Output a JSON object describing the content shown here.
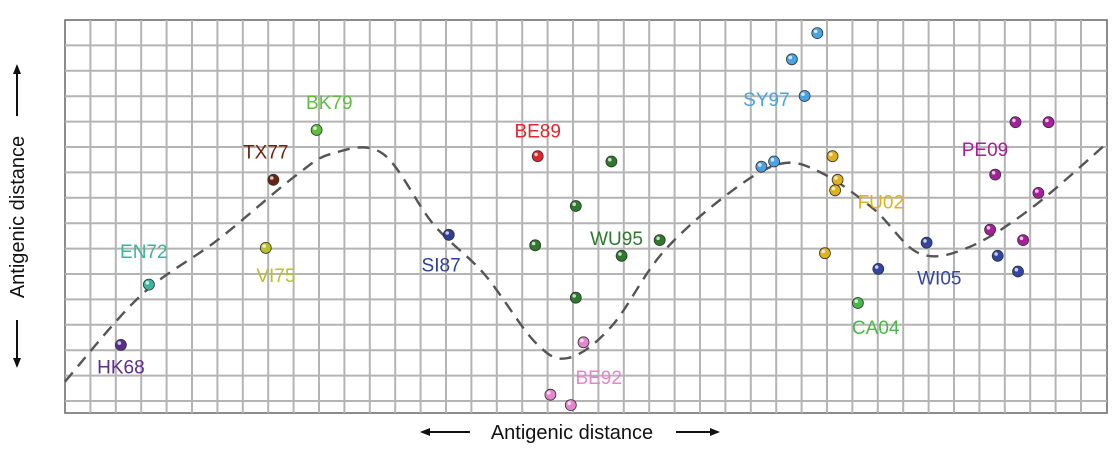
{
  "chart_data": {
    "type": "scatter",
    "xlabel": "Antigenic distance",
    "ylabel": "Antigenic distance",
    "xlim": [
      0,
      41
    ],
    "ylim": [
      0,
      15
    ],
    "grid": true,
    "clusters": [
      {
        "name": "HK68",
        "color": "#5b2d8e",
        "label_at": [
          2.2,
          1.7
        ],
        "points": [
          [
            2.2,
            2.6
          ]
        ]
      },
      {
        "name": "EN72",
        "color": "#3bb59b",
        "label_at": [
          3.1,
          6.1
        ],
        "points": [
          [
            3.3,
            4.9
          ]
        ]
      },
      {
        "name": "VI75",
        "color": "#b8c128",
        "label_at": [
          8.3,
          5.2
        ],
        "points": [
          [
            7.9,
            6.3
          ]
        ]
      },
      {
        "name": "TX77",
        "color": "#6b2410",
        "label_at": [
          7.9,
          9.9
        ],
        "points": [
          [
            8.2,
            8.9
          ]
        ]
      },
      {
        "name": "BK79",
        "color": "#5cbf3c",
        "label_at": [
          10.4,
          11.8
        ],
        "points": [
          [
            9.9,
            10.8
          ]
        ]
      },
      {
        "name": "SI87",
        "color": "#2d3f9a",
        "label_at": [
          14.8,
          5.6
        ],
        "points": [
          [
            15.1,
            6.8
          ]
        ]
      },
      {
        "name": "BE89",
        "color": "#e0262b",
        "label_at": [
          18.6,
          10.7
        ],
        "points": [
          [
            18.6,
            9.8
          ]
        ]
      },
      {
        "name": "WU95",
        "color": "#2d7a2d",
        "label_at": [
          21.7,
          6.6
        ],
        "points": [
          [
            21.5,
            9.6
          ],
          [
            20.1,
            7.9
          ],
          [
            18.5,
            6.4
          ],
          [
            20.1,
            4.4
          ],
          [
            21.9,
            6.0
          ],
          [
            23.4,
            6.6
          ]
        ]
      },
      {
        "name": "BE92",
        "color": "#e585cc",
        "label_at": [
          21.0,
          1.3
        ],
        "points": [
          [
            20.4,
            2.7
          ],
          [
            19.1,
            0.7
          ],
          [
            19.9,
            0.3
          ]
        ]
      },
      {
        "name": "SY97",
        "color": "#4aa3e0",
        "label_at": [
          27.6,
          11.9
        ],
        "points": [
          [
            29.6,
            14.5
          ],
          [
            28.6,
            13.5
          ],
          [
            29.1,
            12.1
          ],
          [
            27.4,
            9.4
          ],
          [
            27.9,
            9.6
          ]
        ]
      },
      {
        "name": "FU02",
        "color": "#e0b11f",
        "label_at": [
          32.1,
          8.0
        ],
        "points": [
          [
            30.2,
            9.8
          ],
          [
            30.4,
            8.9
          ],
          [
            30.3,
            8.5
          ],
          [
            29.9,
            6.1
          ]
        ]
      },
      {
        "name": "CA04",
        "color": "#48b848",
        "label_at": [
          31.9,
          3.2
        ],
        "points": [
          [
            31.2,
            4.2
          ]
        ]
      },
      {
        "name": "WI05",
        "color": "#3345a3",
        "label_at": [
          34.4,
          5.1
        ],
        "points": [
          [
            32.0,
            5.5
          ],
          [
            33.9,
            6.5
          ],
          [
            36.7,
            6.0
          ],
          [
            37.5,
            5.4
          ]
        ]
      },
      {
        "name": "PE09",
        "color": "#a61f9c",
        "label_at": [
          36.2,
          10.0
        ],
        "points": [
          [
            37.4,
            11.1
          ],
          [
            38.7,
            11.1
          ],
          [
            36.6,
            9.1
          ],
          [
            38.3,
            8.4
          ],
          [
            36.4,
            7.0
          ],
          [
            37.7,
            6.6
          ]
        ]
      }
    ],
    "trend_curve": [
      [
        0,
        1.2
      ],
      [
        3,
        4.5
      ],
      [
        6,
        6.6
      ],
      [
        9,
        9.0
      ],
      [
        10.5,
        9.9
      ],
      [
        12.5,
        9.9
      ],
      [
        14.5,
        7.2
      ],
      [
        16.5,
        5.3
      ],
      [
        18.5,
        2.7
      ],
      [
        19.8,
        2.1
      ],
      [
        21.5,
        3.3
      ],
      [
        23.5,
        6.1
      ],
      [
        26,
        8.3
      ],
      [
        28.1,
        9.5
      ],
      [
        29.7,
        9.2
      ],
      [
        31.8,
        7.8
      ],
      [
        33.6,
        6.1
      ],
      [
        35.5,
        6.3
      ],
      [
        38,
        7.8
      ],
      [
        41,
        10.3
      ]
    ]
  }
}
